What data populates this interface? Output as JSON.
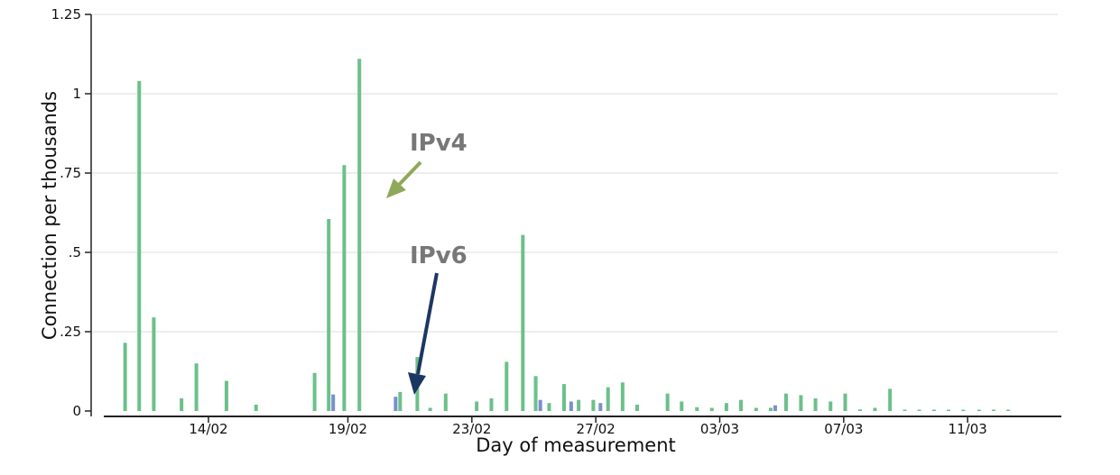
{
  "chart_data": {
    "type": "bar",
    "xlabel": "Day of measurement",
    "ylabel": "Connection per thousands",
    "ylim": [
      0,
      1.25
    ],
    "yticks": [
      0,
      0.25,
      0.5,
      0.75,
      1,
      1.25
    ],
    "ytick_labels": [
      "0",
      ".25",
      ".5",
      ".75",
      "1",
      "1.25"
    ],
    "xlim": [
      0,
      60
    ],
    "xticks": [
      {
        "x": 6,
        "label": "14/02"
      },
      {
        "x": 15,
        "label": "19/02"
      },
      {
        "x": 23,
        "label": "23/02"
      },
      {
        "x": 31,
        "label": "27/02"
      },
      {
        "x": 39,
        "label": "03/03"
      },
      {
        "x": 47,
        "label": "07/03"
      },
      {
        "x": 55,
        "label": "11/03"
      }
    ],
    "grid": true,
    "series": [
      {
        "name": "IPv4",
        "color": "#6cc08a",
        "x": [
          0.62,
          1.53,
          2.47,
          4.26,
          5.22,
          7.16,
          9.07,
          12.85,
          13.76,
          14.76,
          15.74,
          18.37,
          19.48,
          20.31,
          21.31,
          23.31,
          24.26,
          25.24,
          26.29,
          27.12,
          27.99,
          28.95,
          29.89,
          30.84,
          31.79,
          32.73,
          33.67,
          35.63,
          36.54,
          37.53,
          38.49,
          39.43,
          40.37,
          41.35,
          42.29,
          43.28,
          44.24,
          45.18,
          46.15,
          47.1,
          48.06,
          49.02,
          49.99,
          50.94,
          51.88,
          52.83,
          53.77,
          54.72,
          55.74,
          56.68,
          57.62
        ],
        "values": [
          0.215,
          1.04,
          0.295,
          0.04,
          0.15,
          0.095,
          0.02,
          0.12,
          0.605,
          0.775,
          1.11,
          0.06,
          0.17,
          0.01,
          0.055,
          0.03,
          0.04,
          0.155,
          0.555,
          0.11,
          0.025,
          0.085,
          0.035,
          0.035,
          0.075,
          0.09,
          0.02,
          0.055,
          0.03,
          0.012,
          0.01,
          0.025,
          0.035,
          0.01,
          0.01,
          0.055,
          0.05,
          0.04,
          0.03,
          0.055,
          0.005,
          0.01,
          0.07,
          0.003,
          0.002,
          0.002,
          0.002,
          0.002,
          0.002,
          0.002,
          0.002
        ]
      },
      {
        "name": "IPv6",
        "color": "#7b8fce",
        "x": [
          14.05,
          18.08,
          27.42,
          29.41,
          31.3,
          42.58
        ],
        "values": [
          0.052,
          0.045,
          0.035,
          0.03,
          0.025,
          0.018
        ]
      }
    ],
    "annotations": [
      {
        "text": "IPv4",
        "color": "#777777",
        "arrow_color": "#8fa85a"
      },
      {
        "text": "IPv6",
        "color": "#777777",
        "arrow_color": "#1d3763"
      }
    ]
  }
}
